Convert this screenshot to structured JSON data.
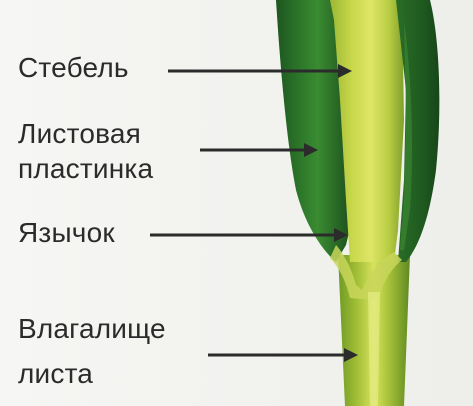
{
  "labels": {
    "stem": "Стебель",
    "blade_line1": "Листовая",
    "blade_line2": "пластинка",
    "ligule": "Язычок",
    "sheath_line1": "Влагалище",
    "sheath_line2": "листа"
  },
  "colors": {
    "background": "#f4f4f2",
    "stem_light": "#d6e05a",
    "stem_mid": "#a9c23a",
    "leaf_dark": "#1f5a22",
    "leaf_mid": "#2f7a2c",
    "text": "#2b2b2b",
    "arrow": "#2b2b2b"
  }
}
